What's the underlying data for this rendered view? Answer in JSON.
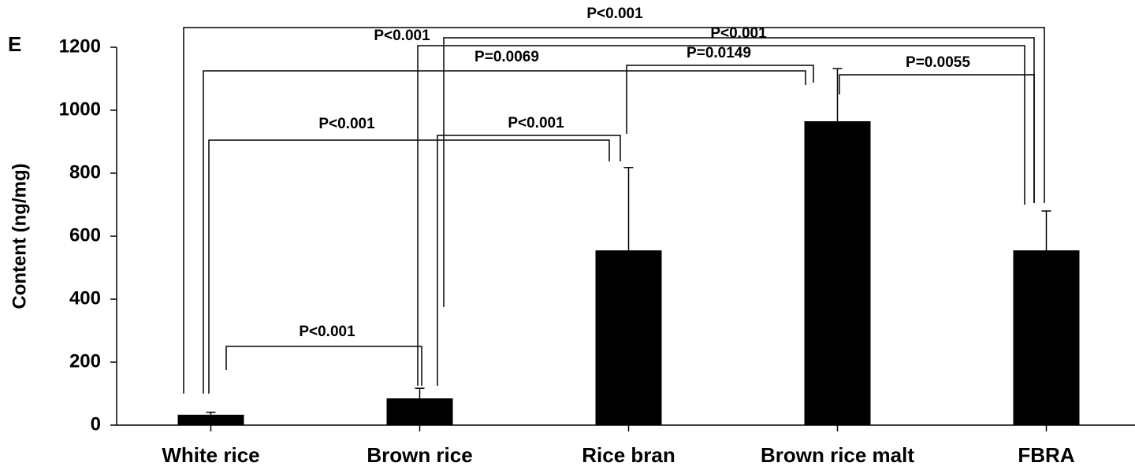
{
  "chart_data": {
    "type": "bar",
    "panel_label": "E",
    "y_label": "Content (ng/mg)",
    "categories": [
      "White rice",
      "Brown rice",
      "Rice bran",
      "Brown rice malt",
      "FBRA"
    ],
    "values": [
      33,
      85,
      555,
      965,
      555
    ],
    "errors": [
      8,
      32,
      263,
      167,
      125
    ],
    "color": "#000000",
    "ylim": [
      0,
      1200
    ],
    "yticks": [
      0,
      200,
      400,
      600,
      800,
      1000,
      1200
    ],
    "annotations": [
      {
        "label": "P<0.001",
        "from": 0,
        "to": 1
      },
      {
        "label": "P<0.001",
        "from": 0,
        "to": 2
      },
      {
        "label": "P<0.001",
        "from": 1,
        "to": 2
      },
      {
        "label": "P=0.0069",
        "from": 0,
        "to": 3
      },
      {
        "label": "P=0.0149",
        "from": 2,
        "to": 3
      },
      {
        "label": "P<0.001",
        "from": 1,
        "to": 4
      },
      {
        "label": "P<0.001",
        "from": 1,
        "to": 4
      },
      {
        "label": "P<0.001",
        "from": 0,
        "to": 4
      },
      {
        "label": "P=0.0055",
        "from": 3,
        "to": 4
      }
    ]
  }
}
